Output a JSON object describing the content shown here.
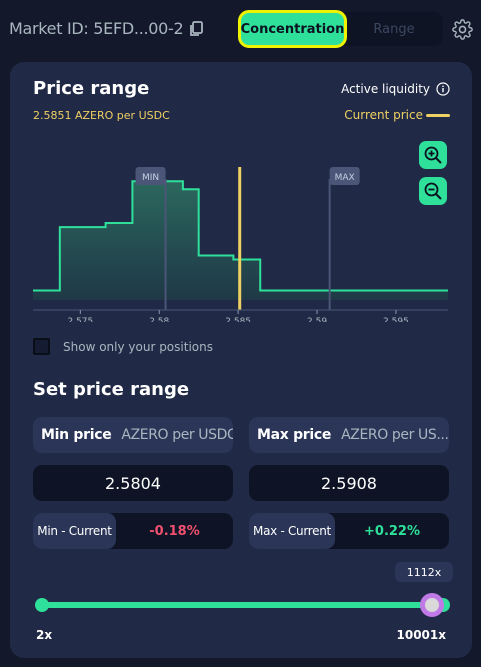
{
  "header": {
    "market_id": "Market ID: 5EFD...00-2",
    "tabs": [
      {
        "label": "Concentration",
        "active": true
      },
      {
        "label": "Range",
        "active": false
      }
    ]
  },
  "price_range": {
    "title": "Price range",
    "current_price_text": "2.5851 AZERO per USDC",
    "active_liquidity_label": "Active liquidity",
    "current_price_legend": "Current price"
  },
  "chart_data": {
    "type": "area",
    "x_ticks": [
      "2.575",
      "2.58",
      "2.585",
      "2.59",
      "2.595"
    ],
    "xlim": [
      2.572,
      2.5983
    ],
    "steps": [
      {
        "x0": 2.572,
        "x1": 2.5737,
        "y": 0.07
      },
      {
        "x0": 2.5737,
        "x1": 2.5766,
        "y": 0.54
      },
      {
        "x0": 2.5766,
        "x1": 2.5783,
        "y": 0.57
      },
      {
        "x0": 2.5783,
        "x1": 2.5815,
        "y": 0.88
      },
      {
        "x0": 2.5815,
        "x1": 2.5825,
        "y": 0.82
      },
      {
        "x0": 2.5825,
        "x1": 2.5847,
        "y": 0.33
      },
      {
        "x0": 2.5847,
        "x1": 2.5864,
        "y": 0.3
      },
      {
        "x0": 2.5864,
        "x1": 2.5983,
        "y": 0.07
      }
    ],
    "min_marker": {
      "label": "MIN",
      "x": 2.5804
    },
    "max_marker": {
      "label": "MAX",
      "x": 2.5908
    },
    "current_price": 2.5851,
    "colors": {
      "line": "#2ee09a",
      "current": "#efd063",
      "marker": "#4a5578"
    }
  },
  "checkbox": {
    "label": "Show only your positions",
    "checked": false
  },
  "set_range": {
    "title": "Set price range",
    "min": {
      "label": "Min price",
      "unit": "AZERO per USDC",
      "value": "2.5804",
      "diff_label": "Min - Current",
      "diff_value": "-0.18%"
    },
    "max": {
      "label": "Max price",
      "unit": "AZERO per US...",
      "value": "2.5908",
      "diff_label": "Max - Current",
      "diff_value": "+0.22%"
    }
  },
  "concentration": {
    "current": "1112x",
    "min_label": "2x",
    "max_label": "10001x",
    "level": 0.97
  },
  "colors": {
    "accent": "#2ee09a",
    "negative": "#f0506e",
    "positive": "#2ee09a",
    "price": "#efd063",
    "highlight": "#eff200"
  }
}
